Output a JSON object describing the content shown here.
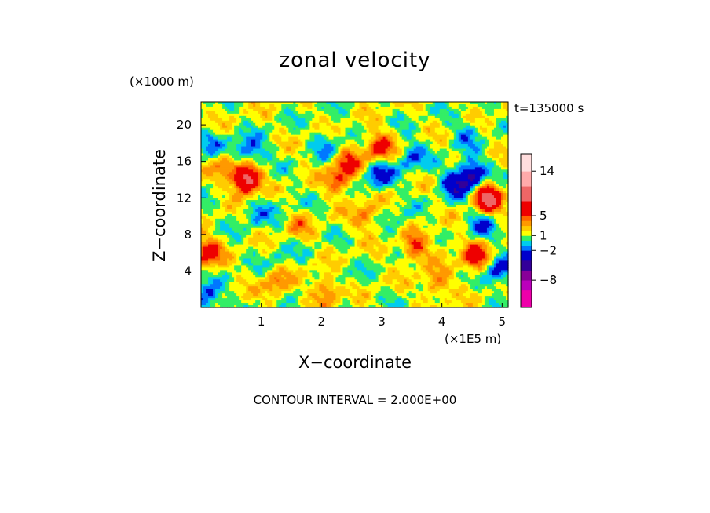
{
  "chart_data": {
    "type": "heatmap",
    "title": "zonal velocity",
    "xlabel": "X−coordinate",
    "ylabel": "Z−coordinate",
    "x_unit": "(×1E5 m)",
    "y_unit": "(×1000 m)",
    "time_label": "t=135000 s",
    "footer": "CONTOUR INTERVAL = 2.000E+00",
    "xlim": [
      0,
      5.1
    ],
    "ylim": [
      0,
      22.5
    ],
    "x_ticks": [
      "1",
      "2",
      "3",
      "4",
      "5"
    ],
    "y_ticks": [
      "4",
      "8",
      "12",
      "16",
      "20"
    ],
    "colorbar": {
      "tick_labels": [
        "14",
        "5",
        "1",
        "−2",
        "−8"
      ],
      "tick_values": [
        14,
        5,
        1,
        -2,
        -8
      ],
      "levels": [
        {
          "min": -16,
          "max": -10,
          "color": "#ee00aa"
        },
        {
          "min": -10,
          "max": -8,
          "color": "#bb00bb"
        },
        {
          "min": -8,
          "max": -6,
          "color": "#880099"
        },
        {
          "min": -6,
          "max": -4,
          "color": "#330099"
        },
        {
          "min": -4,
          "max": -2,
          "color": "#0000cc"
        },
        {
          "min": -2,
          "max": -1,
          "color": "#0077ff"
        },
        {
          "min": -1,
          "max": 0,
          "color": "#00ccee"
        },
        {
          "min": 0,
          "max": 1,
          "color": "#33ee66"
        },
        {
          "min": 1,
          "max": 2,
          "color": "#ffff00"
        },
        {
          "min": 2,
          "max": 3,
          "color": "#ffcc00"
        },
        {
          "min": 3,
          "max": 4,
          "color": "#ff9900"
        },
        {
          "min": 4,
          "max": 5,
          "color": "#ff6600"
        },
        {
          "min": 5,
          "max": 8,
          "color": "#ee0000"
        },
        {
          "min": 8,
          "max": 11,
          "color": "#ee6666"
        },
        {
          "min": 11,
          "max": 14,
          "color": "#ffaaaa"
        },
        {
          "min": 14,
          "max": 18,
          "color": "#ffdddd"
        }
      ]
    },
    "features": [
      {
        "x": 0.75,
        "z": 14.0,
        "u": 9
      },
      {
        "x": 0.45,
        "z": 16.0,
        "u": 5
      },
      {
        "x": 0.55,
        "z": 16.5,
        "u": -4
      },
      {
        "x": 0.85,
        "z": 17.0,
        "u": -3
      },
      {
        "x": 0.2,
        "z": 18.0,
        "u": -2
      },
      {
        "x": 0.1,
        "z": 6.0,
        "u": 5
      },
      {
        "x": 0.1,
        "z": 1.0,
        "u": -4
      },
      {
        "x": 0.9,
        "z": 10.5,
        "u": -2
      },
      {
        "x": 1.3,
        "z": 5.5,
        "u": -1
      },
      {
        "x": 1.35,
        "z": 11.0,
        "u": -1
      },
      {
        "x": 1.6,
        "z": 9.0,
        "u": 2
      },
      {
        "x": 2.75,
        "z": 10.0,
        "u": 3
      },
      {
        "x": 2.3,
        "z": 14.0,
        "u": 4
      },
      {
        "x": 2.45,
        "z": 16.0,
        "u": 3
      },
      {
        "x": 2.1,
        "z": 18.0,
        "u": -2
      },
      {
        "x": 2.95,
        "z": 17.5,
        "u": 5
      },
      {
        "x": 2.95,
        "z": 14.5,
        "u": -4
      },
      {
        "x": 3.5,
        "z": 16.5,
        "u": -3
      },
      {
        "x": 3.3,
        "z": 9.5,
        "u": -1
      },
      {
        "x": 3.55,
        "z": 6.5,
        "u": 4
      },
      {
        "x": 4.2,
        "z": 13.5,
        "u": -4
      },
      {
        "x": 4.5,
        "z": 14.5,
        "u": -6
      },
      {
        "x": 4.75,
        "z": 12.0,
        "u": 8
      },
      {
        "x": 4.65,
        "z": 9.0,
        "u": -3
      },
      {
        "x": 4.55,
        "z": 5.5,
        "u": 5
      },
      {
        "x": 4.95,
        "z": 4.0,
        "u": -4
      },
      {
        "x": 4.4,
        "z": 19.0,
        "u": -2
      },
      {
        "x": 2.3,
        "z": 3.0,
        "u": -1
      },
      {
        "x": 3.9,
        "z": 2.5,
        "u": 3
      },
      {
        "x": 4.05,
        "z": 7.0,
        "u": 1
      },
      {
        "x": 2.1,
        "z": 2.0,
        "u": 4
      },
      {
        "x": 1.25,
        "z": 2.5,
        "u": 3
      }
    ]
  }
}
